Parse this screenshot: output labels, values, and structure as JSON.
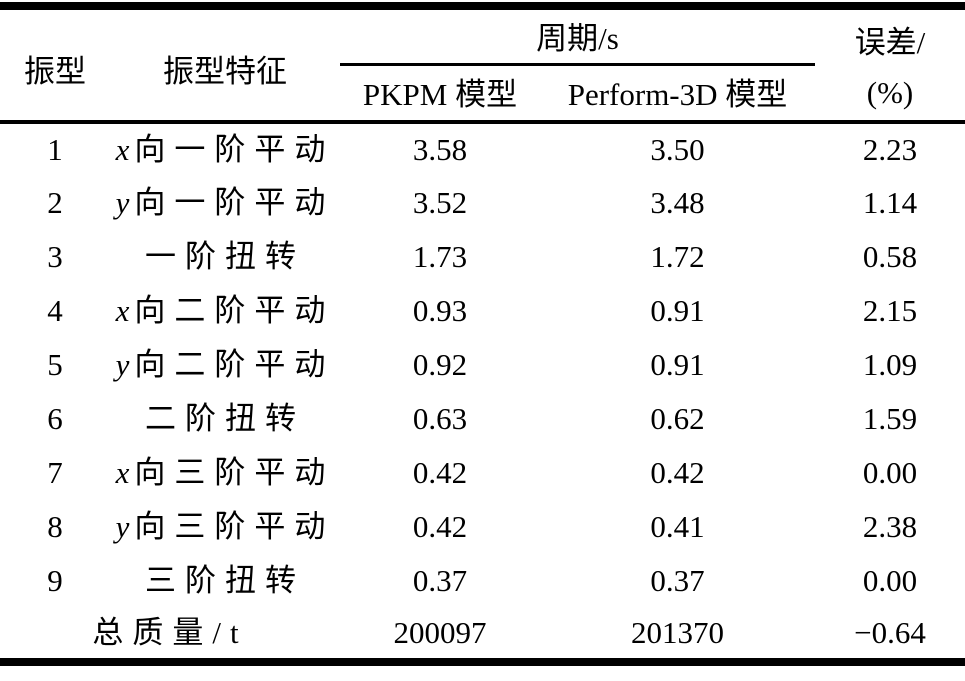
{
  "colors": {
    "ink": "#000000",
    "background": "#ffffff"
  },
  "table": {
    "header": {
      "mode": "振型",
      "feature": "振型特征",
      "period_group": "周期/s",
      "pkpm_model": "PKPM 模型",
      "perform3d_model": "Perform-3D 模型",
      "error_line1": "误差/",
      "error_line2": "(%)"
    },
    "rows": [
      {
        "mode": "1",
        "feature_italic": "x",
        "feature_text": "向一阶平动",
        "pkpm": "3.58",
        "perform3d": "3.50",
        "error": "2.23"
      },
      {
        "mode": "2",
        "feature_italic": "y",
        "feature_text": "向一阶平动",
        "pkpm": "3.52",
        "perform3d": "3.48",
        "error": "1.14"
      },
      {
        "mode": "3",
        "feature_italic": "",
        "feature_text": "一阶扭转",
        "pkpm": "1.73",
        "perform3d": "1.72",
        "error": "0.58"
      },
      {
        "mode": "4",
        "feature_italic": "x",
        "feature_text": "向二阶平动",
        "pkpm": "0.93",
        "perform3d": "0.91",
        "error": "2.15"
      },
      {
        "mode": "5",
        "feature_italic": "y",
        "feature_text": "向二阶平动",
        "pkpm": "0.92",
        "perform3d": "0.91",
        "error": "1.09"
      },
      {
        "mode": "6",
        "feature_italic": "",
        "feature_text": "二阶扭转",
        "pkpm": "0.63",
        "perform3d": "0.62",
        "error": "1.59"
      },
      {
        "mode": "7",
        "feature_italic": "x",
        "feature_text": "向三阶平动",
        "pkpm": "0.42",
        "perform3d": "0.42",
        "error": "0.00"
      },
      {
        "mode": "8",
        "feature_italic": "y",
        "feature_text": "向三阶平动",
        "pkpm": "0.42",
        "perform3d": "0.41",
        "error": "2.38"
      },
      {
        "mode": "9",
        "feature_italic": "",
        "feature_text": "三阶扭转",
        "pkpm": "0.37",
        "perform3d": "0.37",
        "error": "0.00"
      }
    ],
    "footer": {
      "label": "总质量/t",
      "pkpm": "200097",
      "perform3d": "201370",
      "error": "−0.64"
    }
  }
}
